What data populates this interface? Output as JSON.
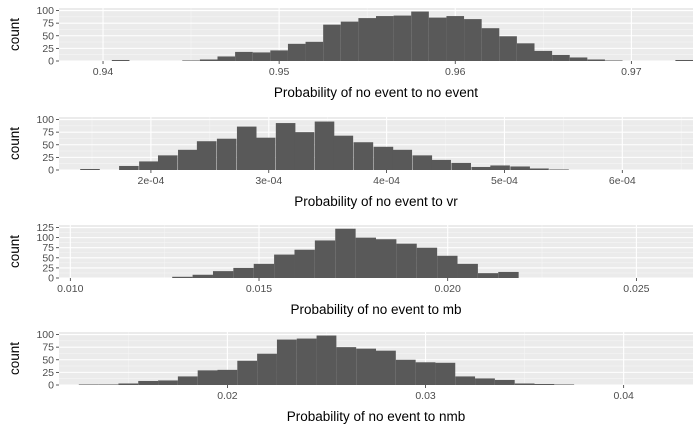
{
  "chart_data": [
    {
      "type": "bar",
      "xlabel": "Probability of no event to no event",
      "ylabel": "count",
      "xlim": [
        0.9375,
        0.9735
      ],
      "ylim": [
        0,
        100
      ],
      "x_ticks": [
        0.94,
        0.95,
        0.96,
        0.97
      ],
      "x_tick_labels": [
        "0.94",
        "0.95",
        "0.96",
        "0.97"
      ],
      "y_ticks": [
        0,
        25,
        50,
        75,
        100
      ],
      "y_tick_labels": [
        "0",
        "25",
        "50",
        "75",
        "100"
      ],
      "bin_width": 0.001,
      "bins_start": [
        0.9405,
        0.9445,
        0.9455,
        0.9465,
        0.9475,
        0.9485,
        0.9495,
        0.9505,
        0.9515,
        0.9525,
        0.9535,
        0.9545,
        0.9555,
        0.9565,
        0.9575,
        0.9585,
        0.9595,
        0.9605,
        0.9615,
        0.9625,
        0.9635,
        0.9645,
        0.9655,
        0.9665,
        0.9675,
        0.9685,
        0.9725
      ],
      "values": [
        2,
        1,
        3,
        9,
        18,
        17,
        21,
        34,
        38,
        72,
        78,
        85,
        89,
        90,
        98,
        86,
        89,
        83,
        65,
        49,
        35,
        20,
        12,
        7,
        3,
        1,
        2
      ]
    },
    {
      "type": "bar",
      "xlabel": "Probability of no event to vr",
      "ylabel": "count",
      "xlim": [
        0.000122,
        0.00066
      ],
      "ylim": [
        0,
        100
      ],
      "x_ticks": [
        0.0002,
        0.0003,
        0.0004,
        0.0005,
        0.0006
      ],
      "x_tick_labels": [
        "2e-04",
        "3e-04",
        "4e-04",
        "5e-04",
        "6e-04"
      ],
      "y_ticks": [
        0,
        25,
        50,
        75,
        100
      ],
      "y_tick_labels": [
        "0",
        "25",
        "50",
        "75",
        "100"
      ],
      "bin_width": 1.66e-05,
      "bins_start": [
        0.00014,
        0.000173,
        0.00019,
        0.000206,
        0.000223,
        0.000239,
        0.000256,
        0.000273,
        0.000289,
        0.000306,
        0.000322,
        0.000339,
        0.000355,
        0.000372,
        0.000389,
        0.000405,
        0.000422,
        0.000438,
        0.000455,
        0.000472,
        0.000488,
        0.000505,
        0.000521,
        0.000538
      ],
      "values": [
        2,
        8,
        17,
        29,
        40,
        57,
        62,
        86,
        64,
        93,
        75,
        96,
        68,
        55,
        46,
        40,
        29,
        20,
        14,
        6,
        9,
        7,
        3,
        1
      ]
    },
    {
      "type": "bar",
      "xlabel": "Probability of no event to mb",
      "ylabel": "count",
      "xlim": [
        0.0097,
        0.0265
      ],
      "ylim": [
        0,
        125
      ],
      "x_ticks": [
        0.01,
        0.015,
        0.02,
        0.025
      ],
      "x_tick_labels": [
        "0.010",
        "0.015",
        "0.020",
        "0.025"
      ],
      "y_ticks": [
        0,
        25,
        50,
        75,
        100,
        125
      ],
      "y_tick_labels": [
        "0",
        "25",
        "50",
        "75",
        "100",
        "125"
      ],
      "bin_width": 0.00054,
      "bins_start": [
        0.0127,
        0.01324,
        0.01378,
        0.01432,
        0.01486,
        0.0154,
        0.01594,
        0.01648,
        0.01702,
        0.01756,
        0.0181,
        0.01864,
        0.01918,
        0.01972,
        0.02026,
        0.0208,
        0.02134
      ],
      "values": [
        3,
        8,
        17,
        25,
        35,
        58,
        70,
        93,
        122,
        100,
        96,
        85,
        75,
        55,
        35,
        12,
        15
      ]
    },
    {
      "type": "bar",
      "xlabel": "Probability of no event to nmb",
      "ylabel": "count",
      "xlim": [
        0.0115,
        0.0435
      ],
      "ylim": [
        0,
        100
      ],
      "x_ticks": [
        0.02,
        0.03,
        0.04
      ],
      "x_tick_labels": [
        "0.02",
        "0.03",
        "0.04"
      ],
      "y_ticks": [
        0,
        25,
        50,
        75,
        100
      ],
      "y_tick_labels": [
        "0",
        "25",
        "50",
        "75",
        "100"
      ],
      "bin_width": 0.001,
      "bins_start": [
        0.0125,
        0.0135,
        0.0145,
        0.0155,
        0.0165,
        0.0175,
        0.0185,
        0.0195,
        0.0205,
        0.0215,
        0.0225,
        0.0235,
        0.0245,
        0.0255,
        0.0265,
        0.0275,
        0.0285,
        0.0295,
        0.0305,
        0.0315,
        0.0325,
        0.0335,
        0.0345,
        0.0355,
        0.0365
      ],
      "values": [
        1,
        1,
        3,
        8,
        9,
        17,
        29,
        30,
        48,
        62,
        90,
        92,
        98,
        75,
        72,
        68,
        50,
        45,
        44,
        17,
        13,
        10,
        3,
        2,
        1
      ]
    }
  ],
  "colors": {
    "panel_bg": "#ebebeb",
    "bar": "#595959",
    "grid_major": "#ffffff",
    "text": "#4d4d4d",
    "title": "#000000"
  }
}
